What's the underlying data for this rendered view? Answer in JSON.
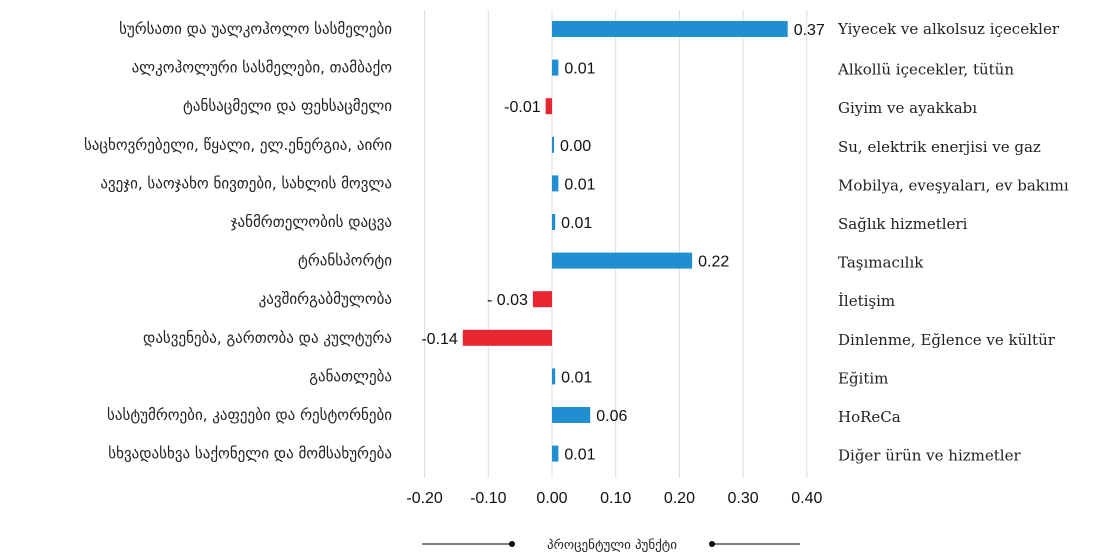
{
  "chart_data": {
    "type": "bar",
    "orientation": "horizontal",
    "categories_ka": [
      "სურსათი და უალკოჰოლო სასმელები",
      "ალკოჰოლური სასმელები, თამბაქო",
      "ტანსაცმელი და ფეხსაცმელი",
      "საცხოვრებელი, წყალი, ელ.ენერგია, აირი",
      "ავეჯი, საოჯახო ნივთები, სახლის მოვლა",
      "ჯანმრთელობის დაცვა",
      "ტრანსპორტი",
      "კავშირგაბმულობა",
      "დასვენება, გართობა და კულტურა",
      "განათლება",
      "სასტუმროები, კაფეები და რესტორნები",
      "სხვადასხვა საქონელი და მომსახურება"
    ],
    "categories_tr": [
      "Yiyecek ve alkolsuz içecekler",
      "Alkollü içecekler, tütün",
      "Giyim ve ayakkabı",
      "Su, elektrik enerjisi ve gaz",
      "Mobilya, eveşyaları, ev bakımı",
      "Sağlık hizmetleri",
      "Taşımacılık",
      "İletişim",
      "Dinlenme, Eğlence ve kültür",
      "Eğitim",
      "HoReCa",
      "Diğer ürün ve hizmetler"
    ],
    "values": [
      0.37,
      0.01,
      -0.01,
      0.003,
      0.01,
      0.005,
      0.22,
      -0.03,
      -0.14,
      0.005,
      0.06,
      0.01
    ],
    "value_labels": [
      "0.37",
      "0.01",
      "-0.01",
      "0.00",
      "0.01",
      "0.01",
      "0.22",
      "- 0.03",
      "-0.14",
      "0.01",
      "0.06",
      "0.01"
    ],
    "xlim": [
      -0.2,
      0.4
    ],
    "xticks": [
      -0.2,
      -0.1,
      0.0,
      0.1,
      0.2,
      0.3,
      0.4
    ],
    "xtick_labels": [
      "-0.20",
      "-0.10",
      "0.00",
      "0.10",
      "0.20",
      "0.30",
      "0.40"
    ],
    "xlabel": "პროცენტული პუნქტი",
    "grid": true,
    "colors": {
      "positive": "#1f8fd1",
      "negative": "#e8262f",
      "grid": "#dcdcdc",
      "axis_line": "#000000"
    }
  }
}
